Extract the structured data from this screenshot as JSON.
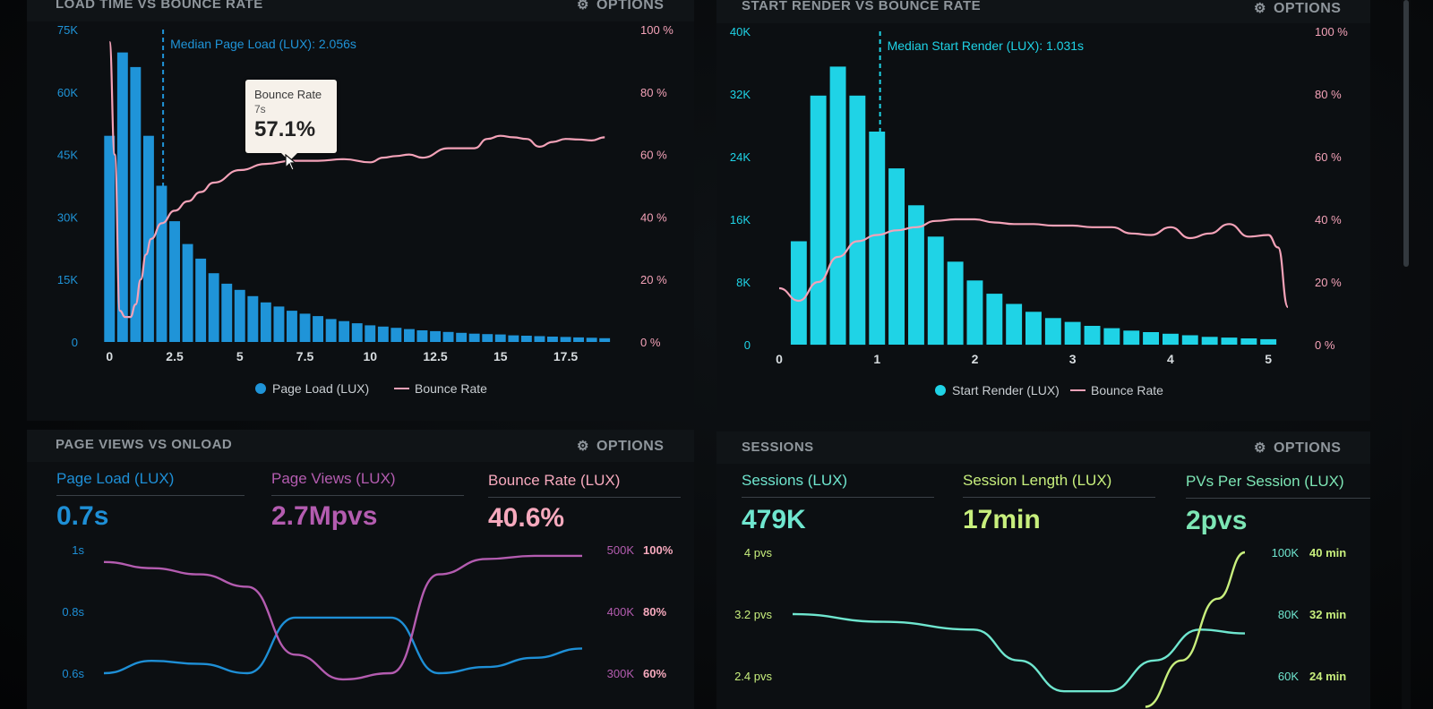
{
  "panels": {
    "load": {
      "title": "LOAD TIME VS BOUNCE RATE",
      "options_label": "OPTIONS",
      "median_label": "Median Page Load (LUX): 2.056s",
      "legend": [
        "Page Load (LUX)",
        "Bounce Rate"
      ]
    },
    "render": {
      "title": "START RENDER VS BOUNCE RATE",
      "options_label": "OPTIONS",
      "median_label": "Median Start Render (LUX): 1.031s",
      "legend": [
        "Start Render (LUX)",
        "Bounce Rate"
      ]
    },
    "pageviews": {
      "title": "PAGE VIEWS VS ONLOAD",
      "options_label": "OPTIONS",
      "kpis": [
        {
          "label": "Page Load (LUX)",
          "value": "0.7s",
          "color": "#1e8fd6"
        },
        {
          "label": "Page Views (LUX)",
          "value": "2.7Mpvs",
          "color": "#b45cb0"
        },
        {
          "label": "Bounce Rate (LUX)",
          "value": "40.6%",
          "color": "#f6a9bd"
        }
      ]
    },
    "sessions": {
      "title": "SESSIONS",
      "options_label": "OPTIONS",
      "kpis": [
        {
          "label": "Sessions (LUX)",
          "value": "479K",
          "color": "#6fe6cf"
        },
        {
          "label": "Session Length (LUX)",
          "value": "17min",
          "color": "#c8ef7d"
        },
        {
          "label": "PVs Per Session (LUX)",
          "value": "2pvs",
          "color": "#7de6b5"
        }
      ]
    }
  },
  "tooltip": {
    "title": "Bounce Rate",
    "sub": "7s",
    "value": "57.1%"
  },
  "colors": {
    "load_bar": "#1f94d8",
    "render_bar": "#1fd3e6",
    "bounce_line": "#f4a2b8",
    "muted": "#8f969c",
    "pv_load": "#1e8fd6",
    "pv_views": "#b45cb0",
    "pv_bounce": "#f6a9bd",
    "sess_sessions": "#6fe6cf",
    "sess_length": "#c8ef7d"
  },
  "chart_data": [
    {
      "type": "bar",
      "name": "load",
      "y_ticks": [
        "75K",
        "60K",
        "45K",
        "30K",
        "15K",
        "0"
      ],
      "y2_ticks": [
        "100 %",
        "80 %",
        "60 %",
        "40 %",
        "20 %",
        "0 %"
      ],
      "x_ticks": [
        "0",
        "2.5",
        "5",
        "7.5",
        "10",
        "12.5",
        "15",
        "17.5"
      ],
      "ylim": [
        0,
        75000
      ],
      "y2lim": [
        0,
        100
      ],
      "xlim": [
        -0.25,
        19.75
      ],
      "x_tick_values": [
        0,
        2.5,
        5,
        7.5,
        10,
        12.5,
        15,
        17.5
      ],
      "median": 2.056,
      "bar_x": [
        0,
        0.5,
        1,
        1.5,
        2,
        2.5,
        3,
        3.5,
        4,
        4.5,
        5,
        5.5,
        6,
        6.5,
        7,
        7.5,
        8,
        8.5,
        9,
        9.5,
        10,
        10.5,
        11,
        11.5,
        12,
        12.5,
        13,
        13.5,
        14,
        14.5,
        15,
        15.5,
        16,
        16.5,
        17,
        17.5,
        18,
        18.5,
        19
      ],
      "bar_values": [
        49500,
        69500,
        66000,
        49500,
        37500,
        29000,
        23500,
        20000,
        16500,
        14000,
        12500,
        11000,
        9500,
        8500,
        7500,
        6800,
        6200,
        5500,
        5000,
        4500,
        4000,
        3700,
        3400,
        3100,
        2800,
        2600,
        2400,
        2200,
        2000,
        1900,
        1800,
        1600,
        1500,
        1400,
        1300,
        1200,
        1100,
        1000,
        900
      ],
      "line_x": [
        0,
        0.2,
        0.4,
        0.6,
        0.8,
        1,
        1.2,
        1.4,
        1.6,
        2,
        2.5,
        3,
        3.5,
        4,
        5,
        6,
        7,
        8,
        9,
        10,
        10.5,
        11,
        11.5,
        12,
        13,
        13.5,
        14,
        14.5,
        15,
        15.5,
        16,
        16.5,
        17,
        17.5,
        18,
        18.5,
        19
      ],
      "line_values": [
        96,
        60,
        10,
        8,
        8,
        12,
        20,
        28,
        33,
        38,
        42,
        45,
        48,
        51,
        55,
        57,
        58,
        58,
        58.5,
        57.5,
        59,
        59.5,
        60,
        59,
        62,
        62,
        62,
        65,
        66,
        65.5,
        65,
        62.5,
        64,
        65,
        64.8,
        64.5,
        65.5
      ]
    },
    {
      "type": "bar",
      "name": "render",
      "y_ticks": [
        "40K",
        "32K",
        "24K",
        "16K",
        "8K",
        "0"
      ],
      "y2_ticks": [
        "100 %",
        "80 %",
        "60 %",
        "40 %",
        "20 %",
        "0 %"
      ],
      "x_ticks": [
        "0",
        "1",
        "2",
        "3",
        "4",
        "5"
      ],
      "ylim": [
        0,
        40000
      ],
      "y2lim": [
        0,
        100
      ],
      "xlim": [
        0,
        5.2
      ],
      "x_tick_values": [
        0,
        1,
        2,
        3,
        4,
        5
      ],
      "median": 1.031,
      "bar_x": [
        0.2,
        0.4,
        0.6,
        0.8,
        1.0,
        1.2,
        1.4,
        1.6,
        1.8,
        2.0,
        2.2,
        2.4,
        2.6,
        2.8,
        3.0,
        3.2,
        3.4,
        3.6,
        3.8,
        4.0,
        4.2,
        4.4,
        4.6,
        4.8,
        5.0
      ],
      "bar_values": [
        13200,
        31800,
        35500,
        31800,
        27200,
        22500,
        17800,
        13800,
        10600,
        8200,
        6500,
        5200,
        4200,
        3400,
        2900,
        2400,
        2100,
        1800,
        1600,
        1400,
        1200,
        1000,
        900,
        800,
        700
      ],
      "line_x": [
        0,
        0.2,
        0.4,
        0.6,
        0.8,
        1,
        1.2,
        1.4,
        1.6,
        1.8,
        2,
        2.2,
        2.4,
        2.6,
        2.8,
        3,
        3.2,
        3.4,
        3.6,
        3.8,
        4,
        4.2,
        4.4,
        4.6,
        4.8,
        5,
        5.1,
        5.2
      ],
      "line_values": [
        18,
        14,
        20,
        28,
        33,
        35,
        36.5,
        37.5,
        39.5,
        40,
        40,
        39,
        38.5,
        38.5,
        38,
        38,
        37.5,
        37.5,
        35.5,
        35,
        37.5,
        34,
        35.5,
        38.5,
        34.5,
        35,
        31,
        12
      ]
    },
    {
      "type": "line",
      "name": "pageviews",
      "y_ticks": [
        "1s",
        "0.8s",
        "0.6s"
      ],
      "y2_ticks": [
        "500K",
        "400K",
        "300K"
      ],
      "y3_ticks": [
        "100%",
        "80%",
        "60%"
      ],
      "xlim": [
        0,
        10
      ],
      "series": [
        {
          "x": [
            0,
            1,
            2,
            3,
            4,
            5,
            6,
            7,
            8,
            9,
            10
          ],
          "values": [
            0.6,
            0.64,
            0.63,
            0.6,
            0.78,
            0.78,
            0.78,
            0.6,
            0.62,
            0.65,
            0.68
          ]
        },
        {
          "x": [
            0,
            1,
            2,
            3,
            4,
            5,
            6,
            7,
            8,
            9,
            10
          ],
          "values": [
            480,
            470,
            460,
            440,
            330,
            290,
            300,
            460,
            485,
            490,
            490
          ]
        }
      ]
    },
    {
      "type": "line",
      "name": "sessions",
      "y_ticks": [
        "4 pvs",
        "3.2 pvs",
        "2.4 pvs"
      ],
      "y2_ticks": [
        "100K",
        "80K",
        "60K"
      ],
      "y3_ticks": [
        "40 min",
        "32 min",
        "24 min"
      ],
      "xlim": [
        0,
        10
      ],
      "series": [
        {
          "x": [
            0,
            2,
            4,
            5,
            6,
            7,
            8,
            9,
            10
          ],
          "values": [
            3.2,
            3.1,
            3.0,
            2.6,
            2.2,
            2.2,
            2.6,
            3.0,
            2.95
          ]
        },
        {
          "x": [
            7.8,
            8.6,
            9.4,
            10
          ],
          "values": [
            20,
            26,
            34,
            40
          ]
        }
      ]
    }
  ]
}
